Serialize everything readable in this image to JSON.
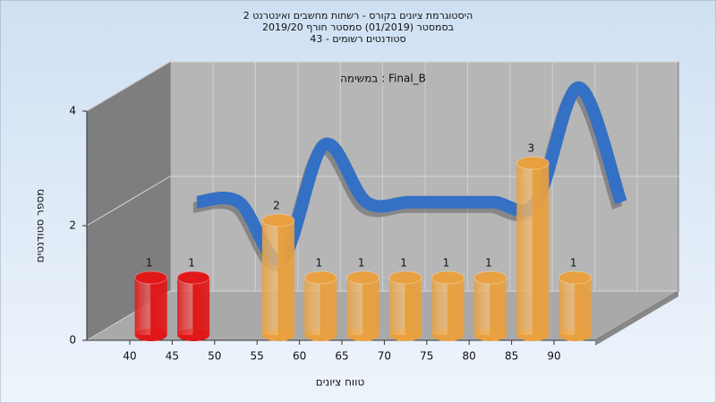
{
  "chart_data": {
    "type": "bar",
    "title": [
      "היסטוגרמת ציונים בקורס - רשתות מחשבים ואינטרנט 2",
      "בסמסטר  (01/2019)  סמסטר חורף 2019/20",
      "סטודנטים רשומים - 43"
    ],
    "annotation": "במשימה : Final_B",
    "y_label": "מספר סטודנטים",
    "x_label": "טווח ציונים",
    "categories": [
      "40",
      "45",
      "50",
      "55",
      "60",
      "65",
      "70",
      "75",
      "80",
      "85",
      "90"
    ],
    "values": [
      1,
      1,
      0,
      2,
      1,
      1,
      1,
      1,
      1,
      3,
      1
    ],
    "colors": [
      "#e01818",
      "#e01818",
      "#e8a040",
      "#e8a040",
      "#e8a040",
      "#e8a040",
      "#e8a040",
      "#e8a040",
      "#e8a040",
      "#e8a040",
      "#e8a040"
    ],
    "line_color": "#3470c4",
    "ylim": [
      0,
      4
    ],
    "yticks": [
      0,
      2,
      4
    ],
    "grid": true
  }
}
